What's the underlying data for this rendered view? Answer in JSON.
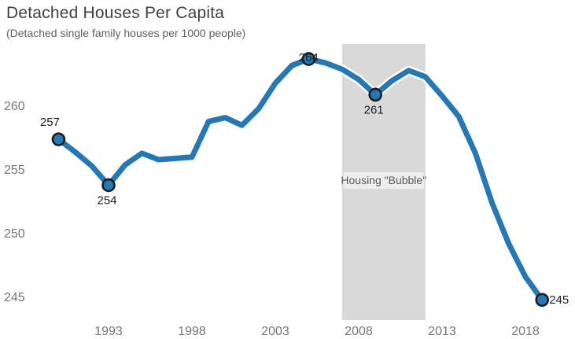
{
  "chart_data": {
    "type": "line",
    "title": "Detached Houses Per Capita",
    "subtitle": "(Detached single family houses per 1000 people)",
    "xlabel": "",
    "ylabel": "",
    "x": [
      1990,
      1991,
      1992,
      1993,
      1994,
      1995,
      1996,
      1997,
      1998,
      1999,
      2000,
      2001,
      2002,
      2003,
      2004,
      2005,
      2006,
      2007,
      2008,
      2009,
      2010,
      2011,
      2012,
      2013,
      2014,
      2015,
      2016,
      2017,
      2018,
      2019
    ],
    "values": [
      257.4,
      256.4,
      255.3,
      253.8,
      255.4,
      256.3,
      255.8,
      255.9,
      256.0,
      258.8,
      259.1,
      258.5,
      259.8,
      261.8,
      263.2,
      263.7,
      263.4,
      262.9,
      262.1,
      260.9,
      262.0,
      262.8,
      262.3,
      260.8,
      259.2,
      256.3,
      252.4,
      249.2,
      246.6,
      244.8
    ],
    "x_ticks": [
      "1993",
      "1998",
      "2003",
      "2008",
      "2013",
      "2018"
    ],
    "y_ticks": [
      "260",
      "255",
      "250",
      "245"
    ],
    "y_tick_values": [
      260,
      255,
      250,
      245
    ],
    "ylim": [
      244,
      265
    ],
    "grid": "off",
    "legend": "none",
    "colors": {
      "line": "#2678b5",
      "line_casing": "#ffffff",
      "marker_fill": "#2678b5",
      "marker_outline": "#1c1c1c",
      "band_fill": "#d9d9d9",
      "band_label_bg": "rgba(255,255,255,0.55)",
      "title_text": "#404040",
      "axis_text": "#757575",
      "data_label_text": "#1f1f1f"
    },
    "annotations": {
      "band": {
        "label": "Housing \"Bubble\"",
        "x_start": 2007,
        "x_end": 2012
      },
      "labeled_points": [
        {
          "x": 1990,
          "label": "257",
          "placement": "above-left"
        },
        {
          "x": 1993,
          "label": "254",
          "placement": "below"
        },
        {
          "x": 2005,
          "label": "264",
          "placement": "above"
        },
        {
          "x": 2009,
          "label": "261",
          "placement": "below"
        },
        {
          "x": 2019,
          "label": "245",
          "placement": "right"
        }
      ]
    }
  }
}
